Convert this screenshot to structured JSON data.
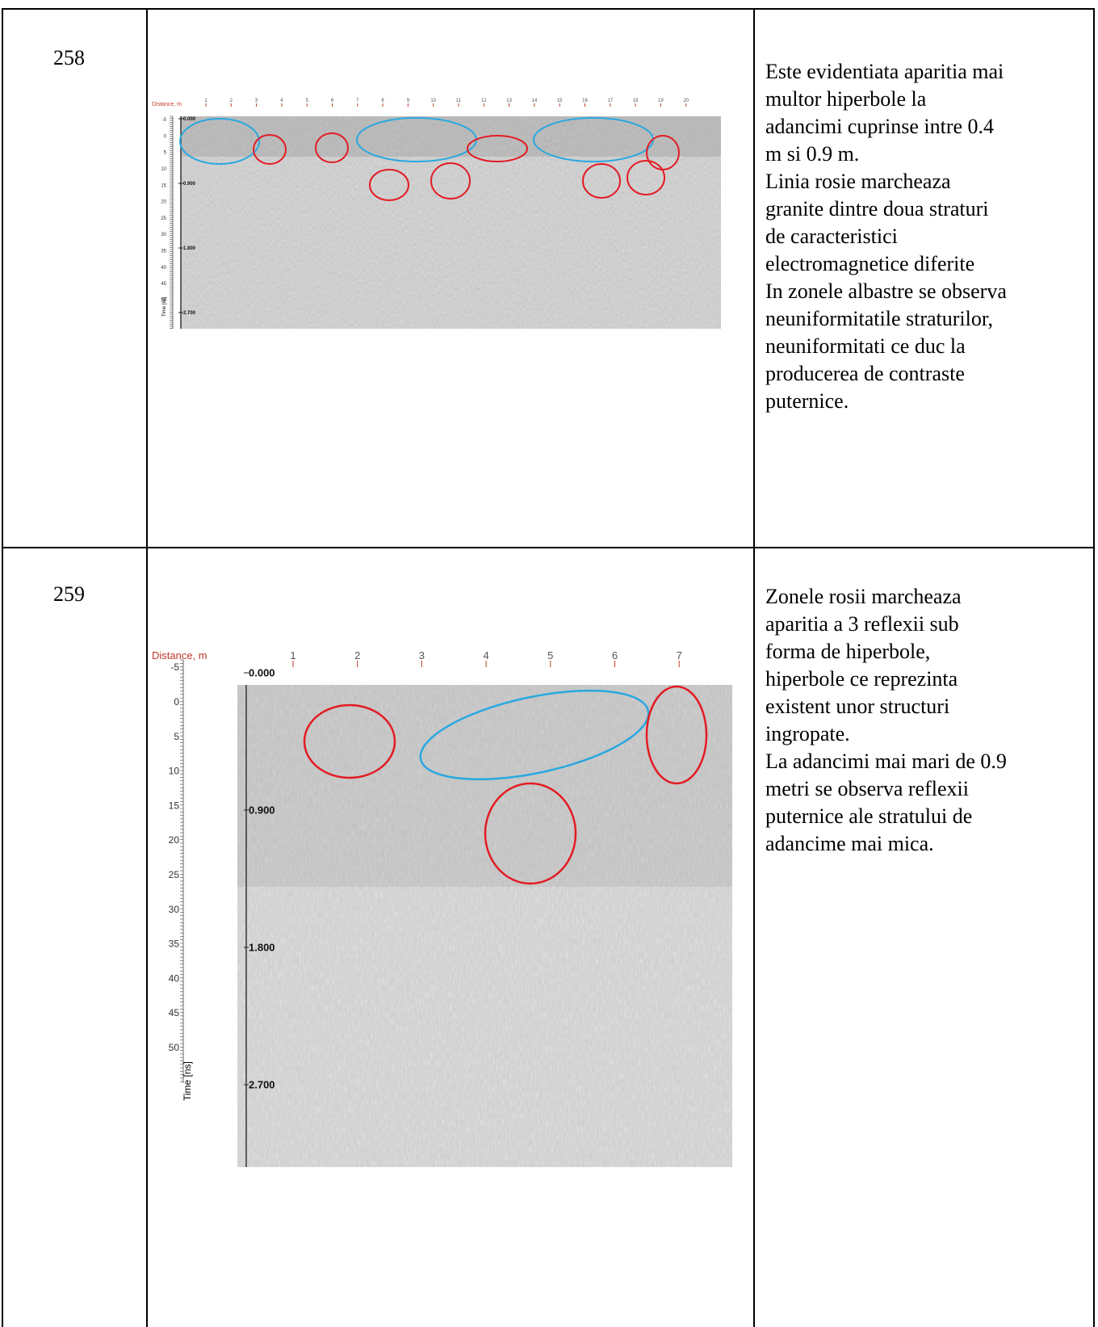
{
  "rows": [
    {
      "number": "258",
      "description": "Este evidentiata aparitia mai\nmultor hiperbole la\nadancimi cuprinse intre 0.4\nm si 0.9 m.\nLinia rosie marcheaza\ngranite dintre doua straturi\nde caracteristici\nelectromagnetice diferite\nIn zonele albastre se observa\nneuniformitatile straturilor,\nneuniformitati ce duc la\nproducerea de contraste\nputernice.",
      "radargram": {
        "distance_label": "Distance, m",
        "distance_ticks": [
          "1",
          "2",
          "3",
          "4",
          "5",
          "6",
          "7",
          "8",
          "9",
          "10",
          "11",
          "12",
          "13",
          "14",
          "15",
          "16",
          "17",
          "18",
          "19",
          "20"
        ],
        "time_ticks": [
          "-5",
          "0",
          "5",
          "10",
          "15",
          "20",
          "25",
          "30",
          "35",
          "40",
          "45",
          "50"
        ],
        "time_label": "Time [ns]",
        "depth_ticks": [
          "0.000",
          "0.900",
          "1.800",
          "2.700"
        ]
      }
    },
    {
      "number": "259",
      "description": "Zonele rosii marcheaza\naparitia a 3 reflexii sub\nforma de hiperbole,\nhiperbole ce reprezinta\nexistent unor structuri\ningropate.\nLa adancimi mai mari de 0.9\nmetri se observa reflexii\nputernice ale stratului de\nadancime mai mica.",
      "radargram": {
        "distance_label": "Distance, m",
        "distance_ticks": [
          "1",
          "2",
          "3",
          "4",
          "5",
          "6",
          "7"
        ],
        "time_ticks": [
          "-5",
          "0",
          "5",
          "10",
          "15",
          "20",
          "25",
          "30",
          "35",
          "40",
          "45",
          "50"
        ],
        "time_label": "Time [ns]",
        "depth_ticks": [
          "0.000",
          "0.900",
          "1.800",
          "2.700"
        ]
      }
    }
  ],
  "colors": {
    "highlight_red": "#e31b23",
    "highlight_blue": "#29a8e0",
    "axis_red": "#c0392b"
  }
}
